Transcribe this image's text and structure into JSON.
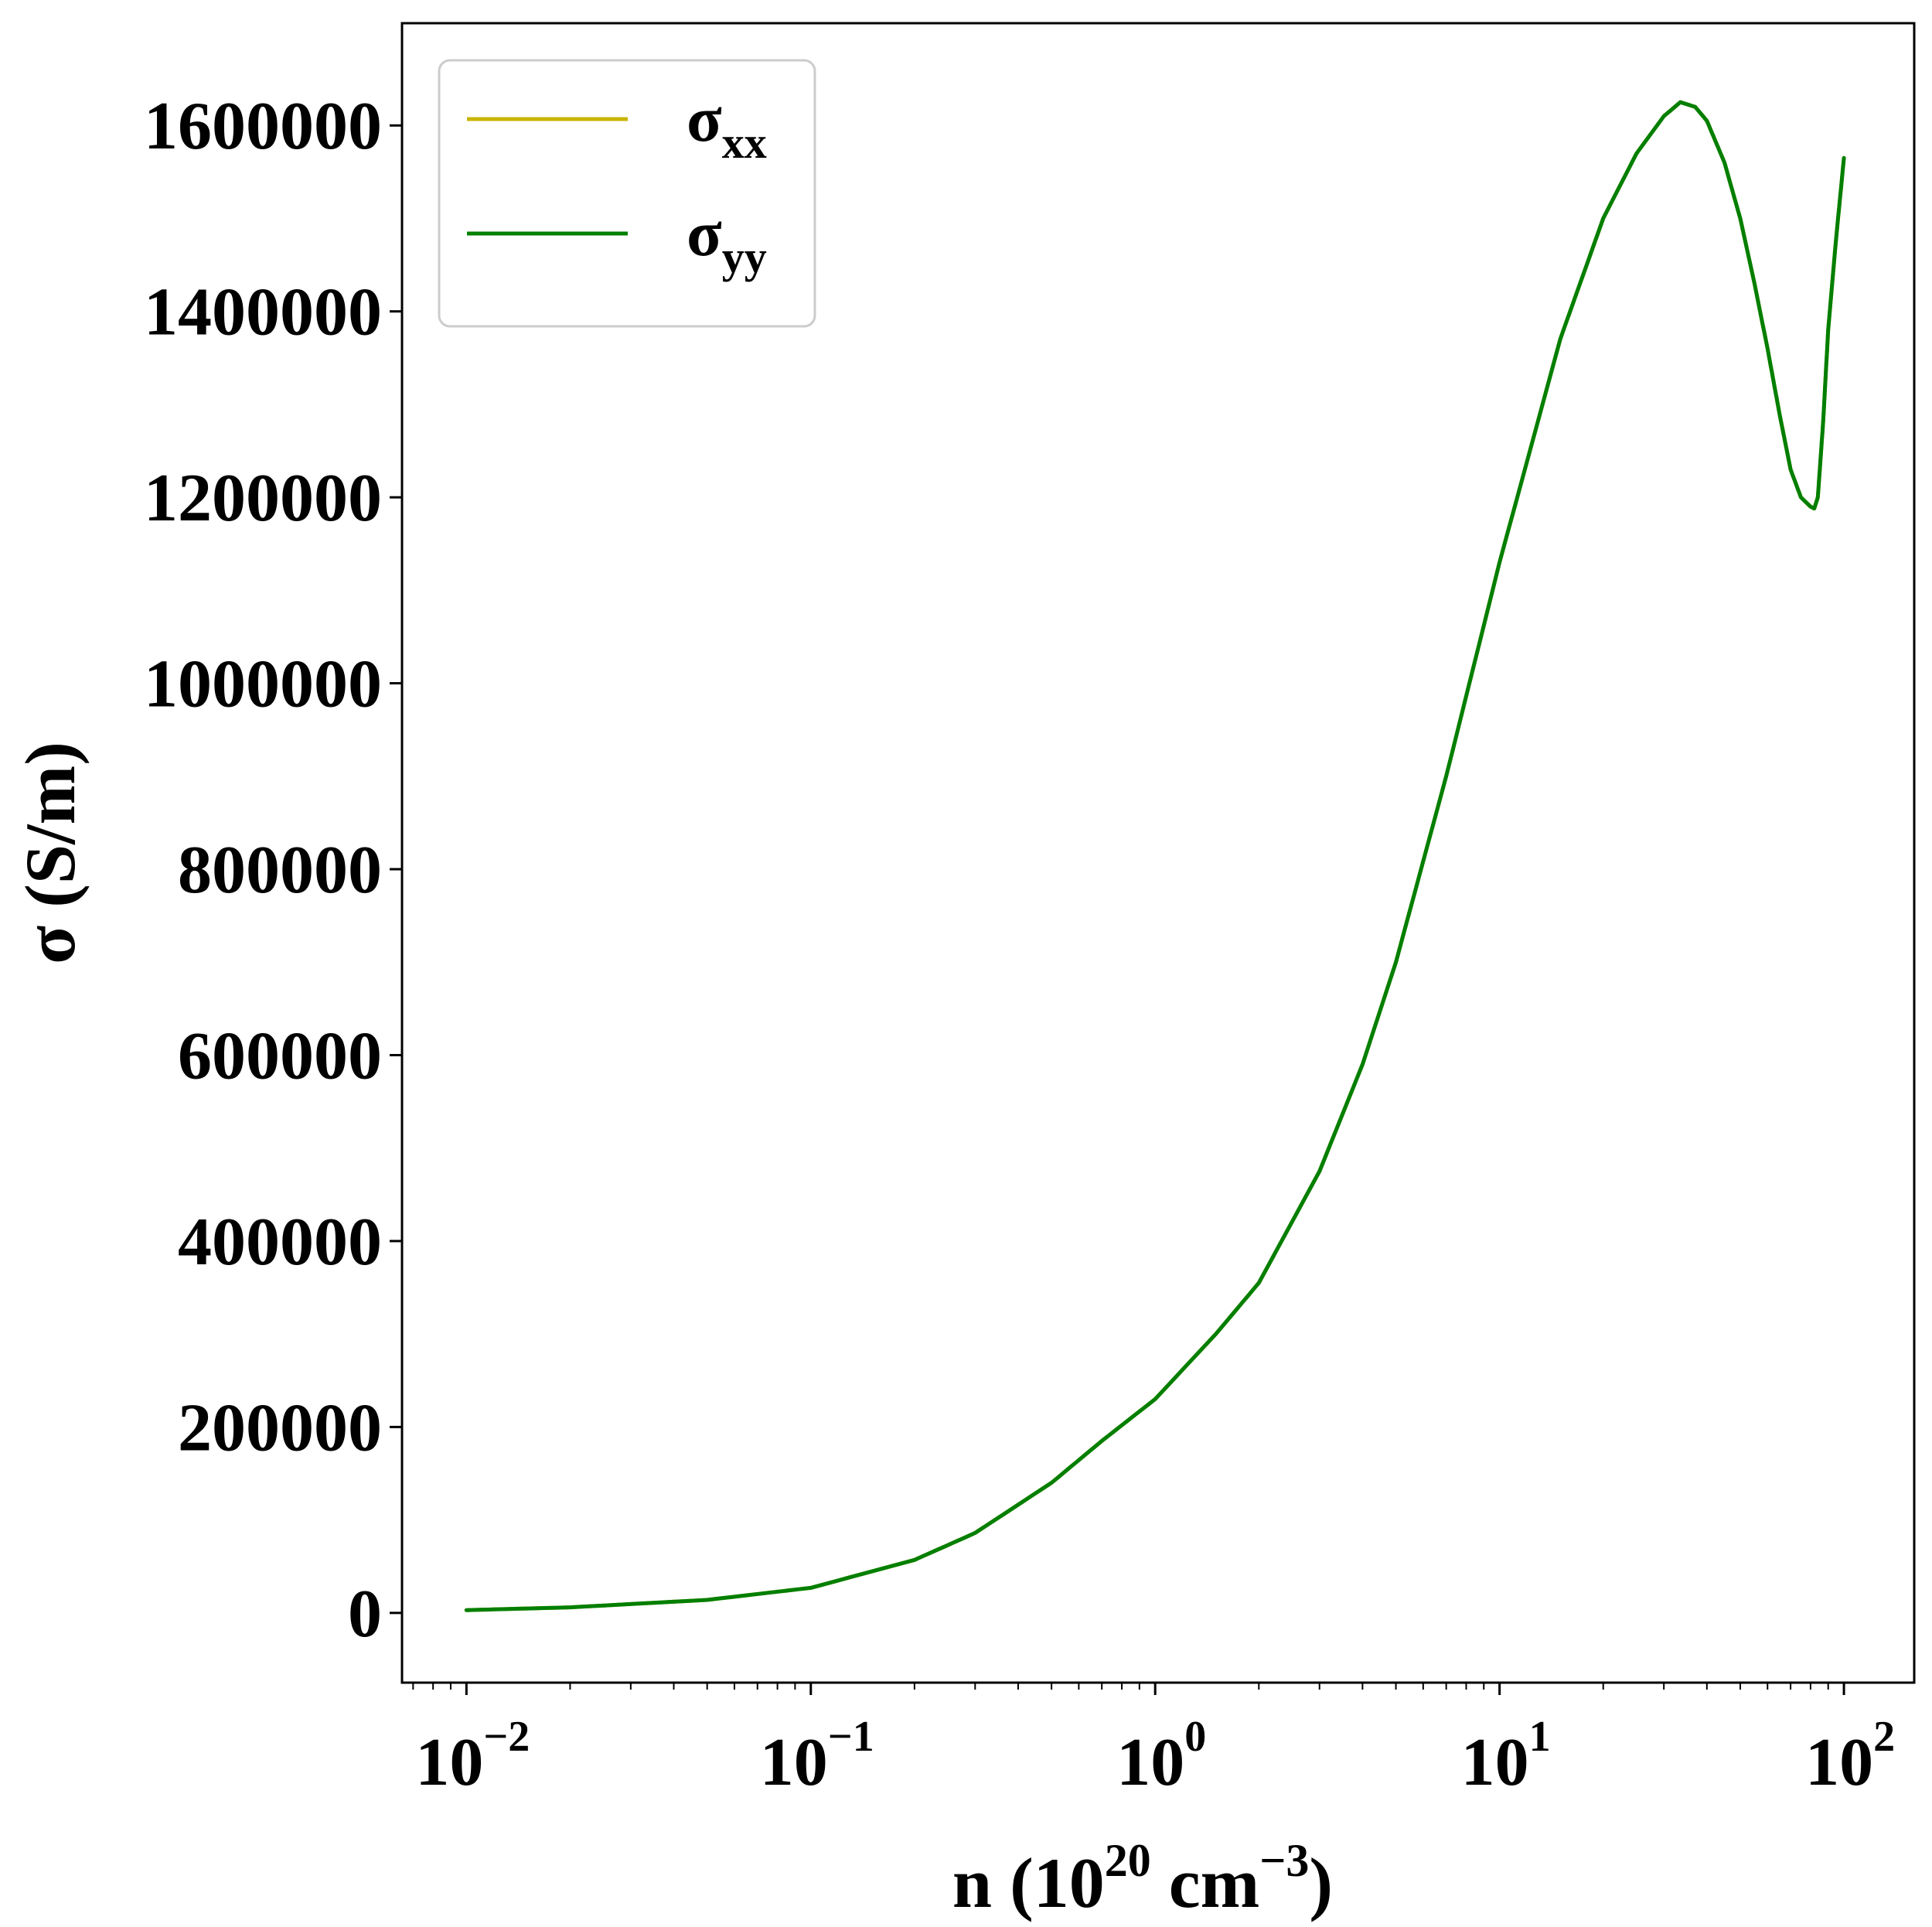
{
  "chart_data": {
    "type": "line",
    "xscale": "log",
    "xlim": [
      0.0065,
      160
    ],
    "ylim": [
      -75000,
      1710000
    ],
    "grid": false,
    "legend_position": "top-left",
    "xlabel": {
      "prefix": "n (10",
      "sup1": "20",
      "middle": " cm",
      "sup2": "−3",
      "suffix": ")"
    },
    "ylabel": "σ (S/m)",
    "yticks": [
      {
        "value": 0,
        "label": "0"
      },
      {
        "value": 200000,
        "label": "200000"
      },
      {
        "value": 400000,
        "label": "400000"
      },
      {
        "value": 600000,
        "label": "600000"
      },
      {
        "value": 800000,
        "label": "800000"
      },
      {
        "value": 1000000,
        "label": "1000000"
      },
      {
        "value": 1200000,
        "label": "1200000"
      },
      {
        "value": 1400000,
        "label": "1400000"
      },
      {
        "value": 1600000,
        "label": "1600000"
      }
    ],
    "xticks": [
      {
        "value": 0.01,
        "base": "10",
        "exp": "−2"
      },
      {
        "value": 0.1,
        "base": "10",
        "exp": "−1"
      },
      {
        "value": 1,
        "base": "10",
        "exp": "0"
      },
      {
        "value": 10,
        "base": "10",
        "exp": "1"
      },
      {
        "value": 100,
        "base": "10",
        "exp": "2"
      }
    ],
    "series": [
      {
        "name": "σ",
        "name_sub": "xx",
        "color": "#c8b400",
        "x": [
          0.01,
          0.02,
          0.05,
          0.1,
          0.2,
          0.3,
          0.5,
          0.7,
          1,
          1.5,
          2,
          3,
          4,
          5,
          7,
          10,
          15,
          20,
          25,
          30,
          33.5,
          37,
          40,
          45,
          50,
          55,
          60,
          65,
          70,
          75,
          80,
          82,
          84,
          87,
          90,
          95,
          100
        ],
        "y": [
          3000,
          6000,
          14000,
          27000,
          57000,
          86000,
          140000,
          185000,
          230000,
          300000,
          355000,
          475000,
          590000,
          700000,
          900000,
          1130000,
          1370000,
          1500000,
          1570000,
          1610000,
          1625000,
          1620000,
          1605000,
          1560000,
          1500000,
          1430000,
          1360000,
          1290000,
          1230000,
          1200000,
          1190000,
          1188000,
          1200000,
          1280000,
          1380000,
          1480000,
          1565000
        ]
      },
      {
        "name": "σ",
        "name_sub": "yy",
        "color": "#007f00",
        "x": [
          0.01,
          0.02,
          0.05,
          0.1,
          0.2,
          0.3,
          0.5,
          0.7,
          1,
          1.5,
          2,
          3,
          4,
          5,
          7,
          10,
          15,
          20,
          25,
          30,
          33.5,
          37,
          40,
          45,
          50,
          55,
          60,
          65,
          70,
          75,
          80,
          82,
          84,
          87,
          90,
          95,
          100
        ],
        "y": [
          3000,
          6000,
          14000,
          27000,
          57000,
          86000,
          140000,
          185000,
          230000,
          300000,
          355000,
          475000,
          590000,
          700000,
          900000,
          1130000,
          1370000,
          1500000,
          1570000,
          1610000,
          1625000,
          1620000,
          1605000,
          1560000,
          1500000,
          1430000,
          1360000,
          1290000,
          1230000,
          1200000,
          1190000,
          1188000,
          1200000,
          1280000,
          1380000,
          1480000,
          1565000
        ]
      }
    ]
  }
}
